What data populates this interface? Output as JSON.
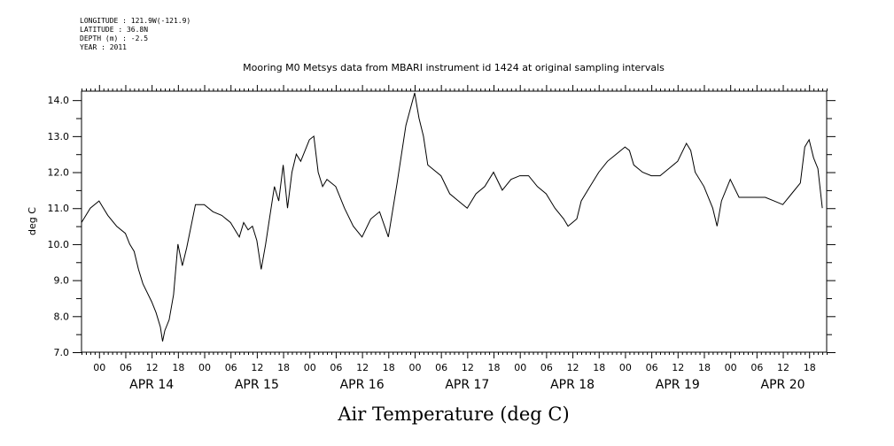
{
  "header": {
    "longitude": "LONGITUDE : 121.9W(-121.9)",
    "latitude": "LATITUDE : 36.8N",
    "depth": "DEPTH (m) : -2.5",
    "year": "YEAR : 2011"
  },
  "chart_data": {
    "type": "line",
    "title": "Mooring M0 Metsys data from MBARI instrument id 1424 at original sampling intervals",
    "xlabel": "Air Temperature (deg C)",
    "ylabel": "deg C",
    "ylim": [
      7.0,
      14.25
    ],
    "yticks": [
      7.0,
      8.0,
      9.0,
      10.0,
      11.0,
      12.0,
      13.0,
      14.0
    ],
    "ytick_labels": [
      "7.0",
      "8.0",
      "9.0",
      "10.0",
      "11.0",
      "12.0",
      "13.0",
      "14.0"
    ],
    "xlim": [
      "2011-04-13T20:00",
      "2011-04-20T22:00"
    ],
    "hour_tick_labels": [
      "00",
      "06",
      "12",
      "18"
    ],
    "day_labels": [
      {
        "date": "2011-04-14",
        "label": "APR 14"
      },
      {
        "date": "2011-04-15",
        "label": "APR 15"
      },
      {
        "date": "2011-04-16",
        "label": "APR 16"
      },
      {
        "date": "2011-04-17",
        "label": "APR 17"
      },
      {
        "date": "2011-04-18",
        "label": "APR 18"
      },
      {
        "date": "2011-04-19",
        "label": "APR 19"
      },
      {
        "date": "2011-04-20",
        "label": "APR 20"
      }
    ],
    "grid": false,
    "line_color": "#000000",
    "series": [
      {
        "x": [
          "2011-04-13T20:00",
          "2011-04-13T22:00",
          "2011-04-14T00:00",
          "2011-04-14T01:00",
          "2011-04-14T02:00",
          "2011-04-14T04:00",
          "2011-04-14T06:00",
          "2011-04-14T07:00",
          "2011-04-14T08:00",
          "2011-04-14T09:00",
          "2011-04-14T10:00",
          "2011-04-14T12:00",
          "2011-04-14T13:00",
          "2011-04-14T14:00",
          "2011-04-14T14:30",
          "2011-04-14T15:00",
          "2011-04-14T16:00",
          "2011-04-14T17:00",
          "2011-04-14T18:00",
          "2011-04-14T19:00",
          "2011-04-14T20:00",
          "2011-04-14T22:00",
          "2011-04-15T00:00",
          "2011-04-15T02:00",
          "2011-04-15T04:00",
          "2011-04-15T06:00",
          "2011-04-15T08:00",
          "2011-04-15T09:00",
          "2011-04-15T10:00",
          "2011-04-15T11:00",
          "2011-04-15T12:00",
          "2011-04-15T13:00",
          "2011-04-15T14:00",
          "2011-04-15T15:00",
          "2011-04-15T16:00",
          "2011-04-15T17:00",
          "2011-04-15T18:00",
          "2011-04-15T19:00",
          "2011-04-15T20:00",
          "2011-04-15T21:00",
          "2011-04-15T22:00",
          "2011-04-16T00:00",
          "2011-04-16T01:00",
          "2011-04-16T02:00",
          "2011-04-16T03:00",
          "2011-04-16T04:00",
          "2011-04-16T06:00",
          "2011-04-16T08:00",
          "2011-04-16T10:00",
          "2011-04-16T12:00",
          "2011-04-16T14:00",
          "2011-04-16T16:00",
          "2011-04-16T18:00",
          "2011-04-16T20:00",
          "2011-04-16T22:00",
          "2011-04-17T00:00",
          "2011-04-17T01:00",
          "2011-04-17T02:00",
          "2011-04-17T03:00",
          "2011-04-17T04:00",
          "2011-04-17T06:00",
          "2011-04-17T08:00",
          "2011-04-17T10:00",
          "2011-04-17T12:00",
          "2011-04-17T14:00",
          "2011-04-17T16:00",
          "2011-04-17T18:00",
          "2011-04-17T20:00",
          "2011-04-17T22:00",
          "2011-04-18T00:00",
          "2011-04-18T02:00",
          "2011-04-18T04:00",
          "2011-04-18T06:00",
          "2011-04-18T08:00",
          "2011-04-18T10:00",
          "2011-04-18T11:00",
          "2011-04-18T12:00",
          "2011-04-18T13:00",
          "2011-04-18T14:00",
          "2011-04-18T16:00",
          "2011-04-18T18:00",
          "2011-04-18T20:00",
          "2011-04-18T22:00",
          "2011-04-19T00:00",
          "2011-04-19T01:00",
          "2011-04-19T02:00",
          "2011-04-19T04:00",
          "2011-04-19T06:00",
          "2011-04-19T08:00",
          "2011-04-19T10:00",
          "2011-04-19T12:00",
          "2011-04-19T14:00",
          "2011-04-19T15:00",
          "2011-04-19T16:00",
          "2011-04-19T18:00",
          "2011-04-19T20:00",
          "2011-04-19T21:00",
          "2011-04-19T22:00",
          "2011-04-20T00:00",
          "2011-04-20T02:00",
          "2011-04-20T04:00",
          "2011-04-20T06:00",
          "2011-04-20T08:00",
          "2011-04-20T10:00",
          "2011-04-20T12:00",
          "2011-04-20T14:00",
          "2011-04-20T16:00",
          "2011-04-20T17:00",
          "2011-04-20T18:00",
          "2011-04-20T19:00",
          "2011-04-20T20:00",
          "2011-04-20T21:00"
        ],
        "y": [
          10.6,
          11.0,
          11.2,
          11.0,
          10.8,
          10.5,
          10.3,
          10.0,
          9.8,
          9.3,
          8.9,
          8.4,
          8.1,
          7.7,
          7.3,
          7.6,
          7.9,
          8.6,
          10.0,
          9.4,
          9.9,
          11.1,
          11.1,
          10.9,
          10.8,
          10.6,
          10.2,
          10.6,
          10.4,
          10.5,
          10.1,
          9.3,
          10.0,
          10.8,
          11.6,
          11.2,
          12.2,
          11.0,
          12.0,
          12.5,
          12.3,
          12.9,
          13.0,
          12.0,
          11.6,
          11.8,
          11.6,
          11.0,
          10.5,
          10.2,
          10.7,
          10.9,
          10.2,
          11.7,
          13.3,
          14.2,
          13.5,
          13.0,
          12.2,
          12.1,
          11.9,
          11.4,
          11.2,
          11.0,
          11.4,
          11.6,
          12.0,
          11.5,
          11.8,
          11.9,
          11.9,
          11.6,
          11.4,
          11.0,
          10.7,
          10.5,
          10.6,
          10.7,
          11.2,
          11.6,
          12.0,
          12.3,
          12.5,
          12.7,
          12.6,
          12.2,
          12.0,
          11.9,
          11.9,
          12.1,
          12.3,
          12.8,
          12.6,
          12.0,
          11.6,
          11.0,
          10.5,
          11.2,
          11.8,
          11.3,
          11.3,
          11.3,
          11.3,
          11.2,
          11.1,
          11.4,
          11.7,
          12.7,
          12.9,
          12.4,
          12.1,
          11.0
        ]
      }
    ]
  }
}
